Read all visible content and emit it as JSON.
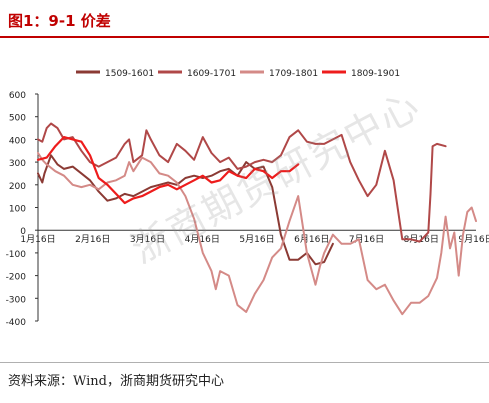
{
  "header": {
    "title": "图1：9-1 价差"
  },
  "footer": {
    "source": "资料来源：Wind，浙商期货研究中心"
  },
  "watermark": "浙商期货研究中心",
  "colors": {
    "title": "#c00000",
    "s1509": "#8b3a34",
    "s1609": "#b04848",
    "s1709": "#d48a87",
    "s1809": "#ee1c1c",
    "axis": "#333333",
    "grid": "#d9d9d9"
  },
  "chart_data": {
    "type": "line",
    "title": "9-1 价差",
    "ylim": [
      -400,
      600
    ],
    "yticks": [
      -400,
      -300,
      -200,
      -100,
      0,
      100,
      200,
      300,
      400,
      500,
      600
    ],
    "xticks": [
      "1月16日",
      "2月16日",
      "3月16日",
      "4月16日",
      "5月16日",
      "6月16日",
      "7月16日",
      "8月16日",
      "9月16日"
    ],
    "legend_position": "top",
    "grid": false,
    "series": [
      {
        "name": "1509-1601",
        "color_key": "s1509",
        "points": [
          [
            1,
            250
          ],
          [
            1.1,
            210
          ],
          [
            1.15,
            250
          ],
          [
            1.3,
            330
          ],
          [
            1.45,
            290
          ],
          [
            1.6,
            270
          ],
          [
            1.8,
            280
          ],
          [
            2.0,
            250
          ],
          [
            2.2,
            220
          ],
          [
            2.4,
            170
          ],
          [
            2.6,
            130
          ],
          [
            2.8,
            140
          ],
          [
            3.0,
            160
          ],
          [
            3.2,
            150
          ],
          [
            3.4,
            170
          ],
          [
            3.6,
            190
          ],
          [
            3.8,
            200
          ],
          [
            4.0,
            210
          ],
          [
            4.2,
            200
          ],
          [
            4.4,
            230
          ],
          [
            4.6,
            240
          ],
          [
            4.8,
            230
          ],
          [
            5.0,
            240
          ],
          [
            5.2,
            260
          ],
          [
            5.4,
            270
          ],
          [
            5.6,
            240
          ],
          [
            5.8,
            300
          ],
          [
            6.0,
            270
          ],
          [
            6.2,
            280
          ],
          [
            6.4,
            190
          ],
          [
            6.6,
            -20
          ],
          [
            6.8,
            -130
          ],
          [
            7.0,
            -130
          ],
          [
            7.2,
            -100
          ],
          [
            7.4,
            -150
          ],
          [
            7.6,
            -140
          ],
          [
            7.8,
            -60
          ]
        ]
      },
      {
        "name": "1609-1701",
        "color_key": "s1609",
        "points": [
          [
            1,
            400
          ],
          [
            1.1,
            390
          ],
          [
            1.2,
            450
          ],
          [
            1.3,
            470
          ],
          [
            1.45,
            450
          ],
          [
            1.6,
            400
          ],
          [
            1.8,
            410
          ],
          [
            2.0,
            350
          ],
          [
            2.2,
            300
          ],
          [
            2.4,
            280
          ],
          [
            2.6,
            300
          ],
          [
            2.8,
            320
          ],
          [
            3.0,
            380
          ],
          [
            3.1,
            400
          ],
          [
            3.2,
            300
          ],
          [
            3.4,
            330
          ],
          [
            3.5,
            440
          ],
          [
            3.6,
            400
          ],
          [
            3.8,
            330
          ],
          [
            4.0,
            300
          ],
          [
            4.2,
            380
          ],
          [
            4.4,
            350
          ],
          [
            4.6,
            310
          ],
          [
            4.8,
            410
          ],
          [
            5.0,
            340
          ],
          [
            5.2,
            300
          ],
          [
            5.4,
            320
          ],
          [
            5.6,
            270
          ],
          [
            5.8,
            280
          ],
          [
            6.0,
            300
          ],
          [
            6.2,
            310
          ],
          [
            6.4,
            300
          ],
          [
            6.6,
            330
          ],
          [
            6.8,
            410
          ],
          [
            7.0,
            440
          ],
          [
            7.2,
            390
          ],
          [
            7.4,
            380
          ],
          [
            7.6,
            380
          ],
          [
            7.8,
            400
          ],
          [
            8.0,
            420
          ],
          [
            8.2,
            300
          ],
          [
            8.4,
            220
          ],
          [
            8.6,
            150
          ],
          [
            8.8,
            200
          ],
          [
            9.0,
            350
          ],
          [
            9.2,
            220
          ],
          [
            9.4,
            -40
          ],
          [
            9.6,
            -40
          ],
          [
            9.8,
            -50
          ],
          [
            10.0,
            -10
          ],
          [
            10.05,
            160
          ],
          [
            10.1,
            370
          ],
          [
            10.2,
            380
          ],
          [
            10.4,
            370
          ]
        ]
      },
      {
        "name": "1709-1801",
        "color_key": "s1709",
        "points": [
          [
            1,
            340
          ],
          [
            1.1,
            310
          ],
          [
            1.2,
            290
          ],
          [
            1.4,
            260
          ],
          [
            1.6,
            240
          ],
          [
            1.8,
            200
          ],
          [
            2.0,
            190
          ],
          [
            2.2,
            200
          ],
          [
            2.4,
            180
          ],
          [
            2.6,
            210
          ],
          [
            2.8,
            220
          ],
          [
            3.0,
            240
          ],
          [
            3.1,
            300
          ],
          [
            3.2,
            260
          ],
          [
            3.4,
            320
          ],
          [
            3.6,
            300
          ],
          [
            3.8,
            250
          ],
          [
            4.0,
            240
          ],
          [
            4.2,
            210
          ],
          [
            4.4,
            150
          ],
          [
            4.6,
            50
          ],
          [
            4.8,
            -100
          ],
          [
            5.0,
            -180
          ],
          [
            5.1,
            -260
          ],
          [
            5.2,
            -180
          ],
          [
            5.4,
            -200
          ],
          [
            5.6,
            -330
          ],
          [
            5.8,
            -360
          ],
          [
            6.0,
            -280
          ],
          [
            6.2,
            -220
          ],
          [
            6.4,
            -120
          ],
          [
            6.6,
            -80
          ],
          [
            6.8,
            40
          ],
          [
            7.0,
            150
          ],
          [
            7.2,
            -100
          ],
          [
            7.4,
            -240
          ],
          [
            7.5,
            -160
          ],
          [
            7.6,
            -100
          ],
          [
            7.8,
            -20
          ],
          [
            8.0,
            -60
          ],
          [
            8.2,
            -60
          ],
          [
            8.4,
            -40
          ],
          [
            8.6,
            -220
          ],
          [
            8.8,
            -260
          ],
          [
            9.0,
            -240
          ],
          [
            9.2,
            -310
          ],
          [
            9.4,
            -370
          ],
          [
            9.6,
            -320
          ],
          [
            9.8,
            -320
          ],
          [
            10.0,
            -290
          ],
          [
            10.2,
            -210
          ],
          [
            10.3,
            -100
          ],
          [
            10.4,
            60
          ],
          [
            10.5,
            -80
          ],
          [
            10.6,
            -10
          ],
          [
            10.7,
            -200
          ],
          [
            10.8,
            -20
          ],
          [
            10.9,
            80
          ],
          [
            11.0,
            100
          ],
          [
            11.1,
            40
          ]
        ]
      },
      {
        "name": "1809-1901",
        "color_key": "s1809",
        "points": [
          [
            1,
            310
          ],
          [
            1.2,
            320
          ],
          [
            1.4,
            370
          ],
          [
            1.6,
            410
          ],
          [
            1.8,
            400
          ],
          [
            2.0,
            390
          ],
          [
            2.2,
            330
          ],
          [
            2.4,
            230
          ],
          [
            2.6,
            200
          ],
          [
            2.8,
            160
          ],
          [
            3.0,
            120
          ],
          [
            3.2,
            140
          ],
          [
            3.4,
            150
          ],
          [
            3.6,
            170
          ],
          [
            3.8,
            190
          ],
          [
            4.0,
            200
          ],
          [
            4.2,
            180
          ],
          [
            4.4,
            200
          ],
          [
            4.6,
            220
          ],
          [
            4.8,
            240
          ],
          [
            5.0,
            210
          ],
          [
            5.2,
            220
          ],
          [
            5.4,
            260
          ],
          [
            5.6,
            240
          ],
          [
            5.8,
            230
          ],
          [
            6.0,
            270
          ],
          [
            6.2,
            260
          ],
          [
            6.4,
            230
          ],
          [
            6.6,
            260
          ],
          [
            6.8,
            260
          ],
          [
            7.0,
            290
          ]
        ]
      }
    ]
  }
}
